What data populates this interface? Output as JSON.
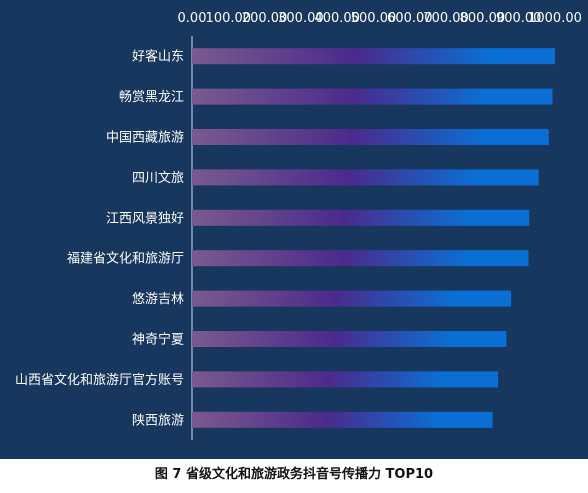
{
  "chart_data": {
    "type": "bar",
    "orientation": "horizontal",
    "categories": [
      "好客山东",
      "畅赏黑龙江",
      "中国西藏旅游",
      "四川文旅",
      "江西风景独好",
      "福建省文化和旅游厅",
      "悠游吉林",
      "神奇宁夏",
      "山西省文化和旅游厅官方账号",
      "陕西旅游"
    ],
    "values": [
      1000,
      993,
      983,
      955,
      929,
      927,
      879,
      866,
      843,
      828
    ],
    "xticks": [
      "0.00",
      "100.00",
      "200.00",
      "300.00",
      "400.00",
      "500.00",
      "600.00",
      "700.00",
      "800.00",
      "900.00",
      "1000.00"
    ],
    "xlim": [
      0,
      1000
    ],
    "axis_position": "top",
    "grid": false,
    "colors": {
      "background": "#17375e",
      "bar_start": "#7a5a8e",
      "bar_mid": "#4b2a8c",
      "bar_end": "#0a6fd4",
      "text": "#ffffff",
      "axis": "#d0d8e8"
    }
  },
  "caption": "图 7 省级文化和旅游政务抖音号传播力 TOP10"
}
